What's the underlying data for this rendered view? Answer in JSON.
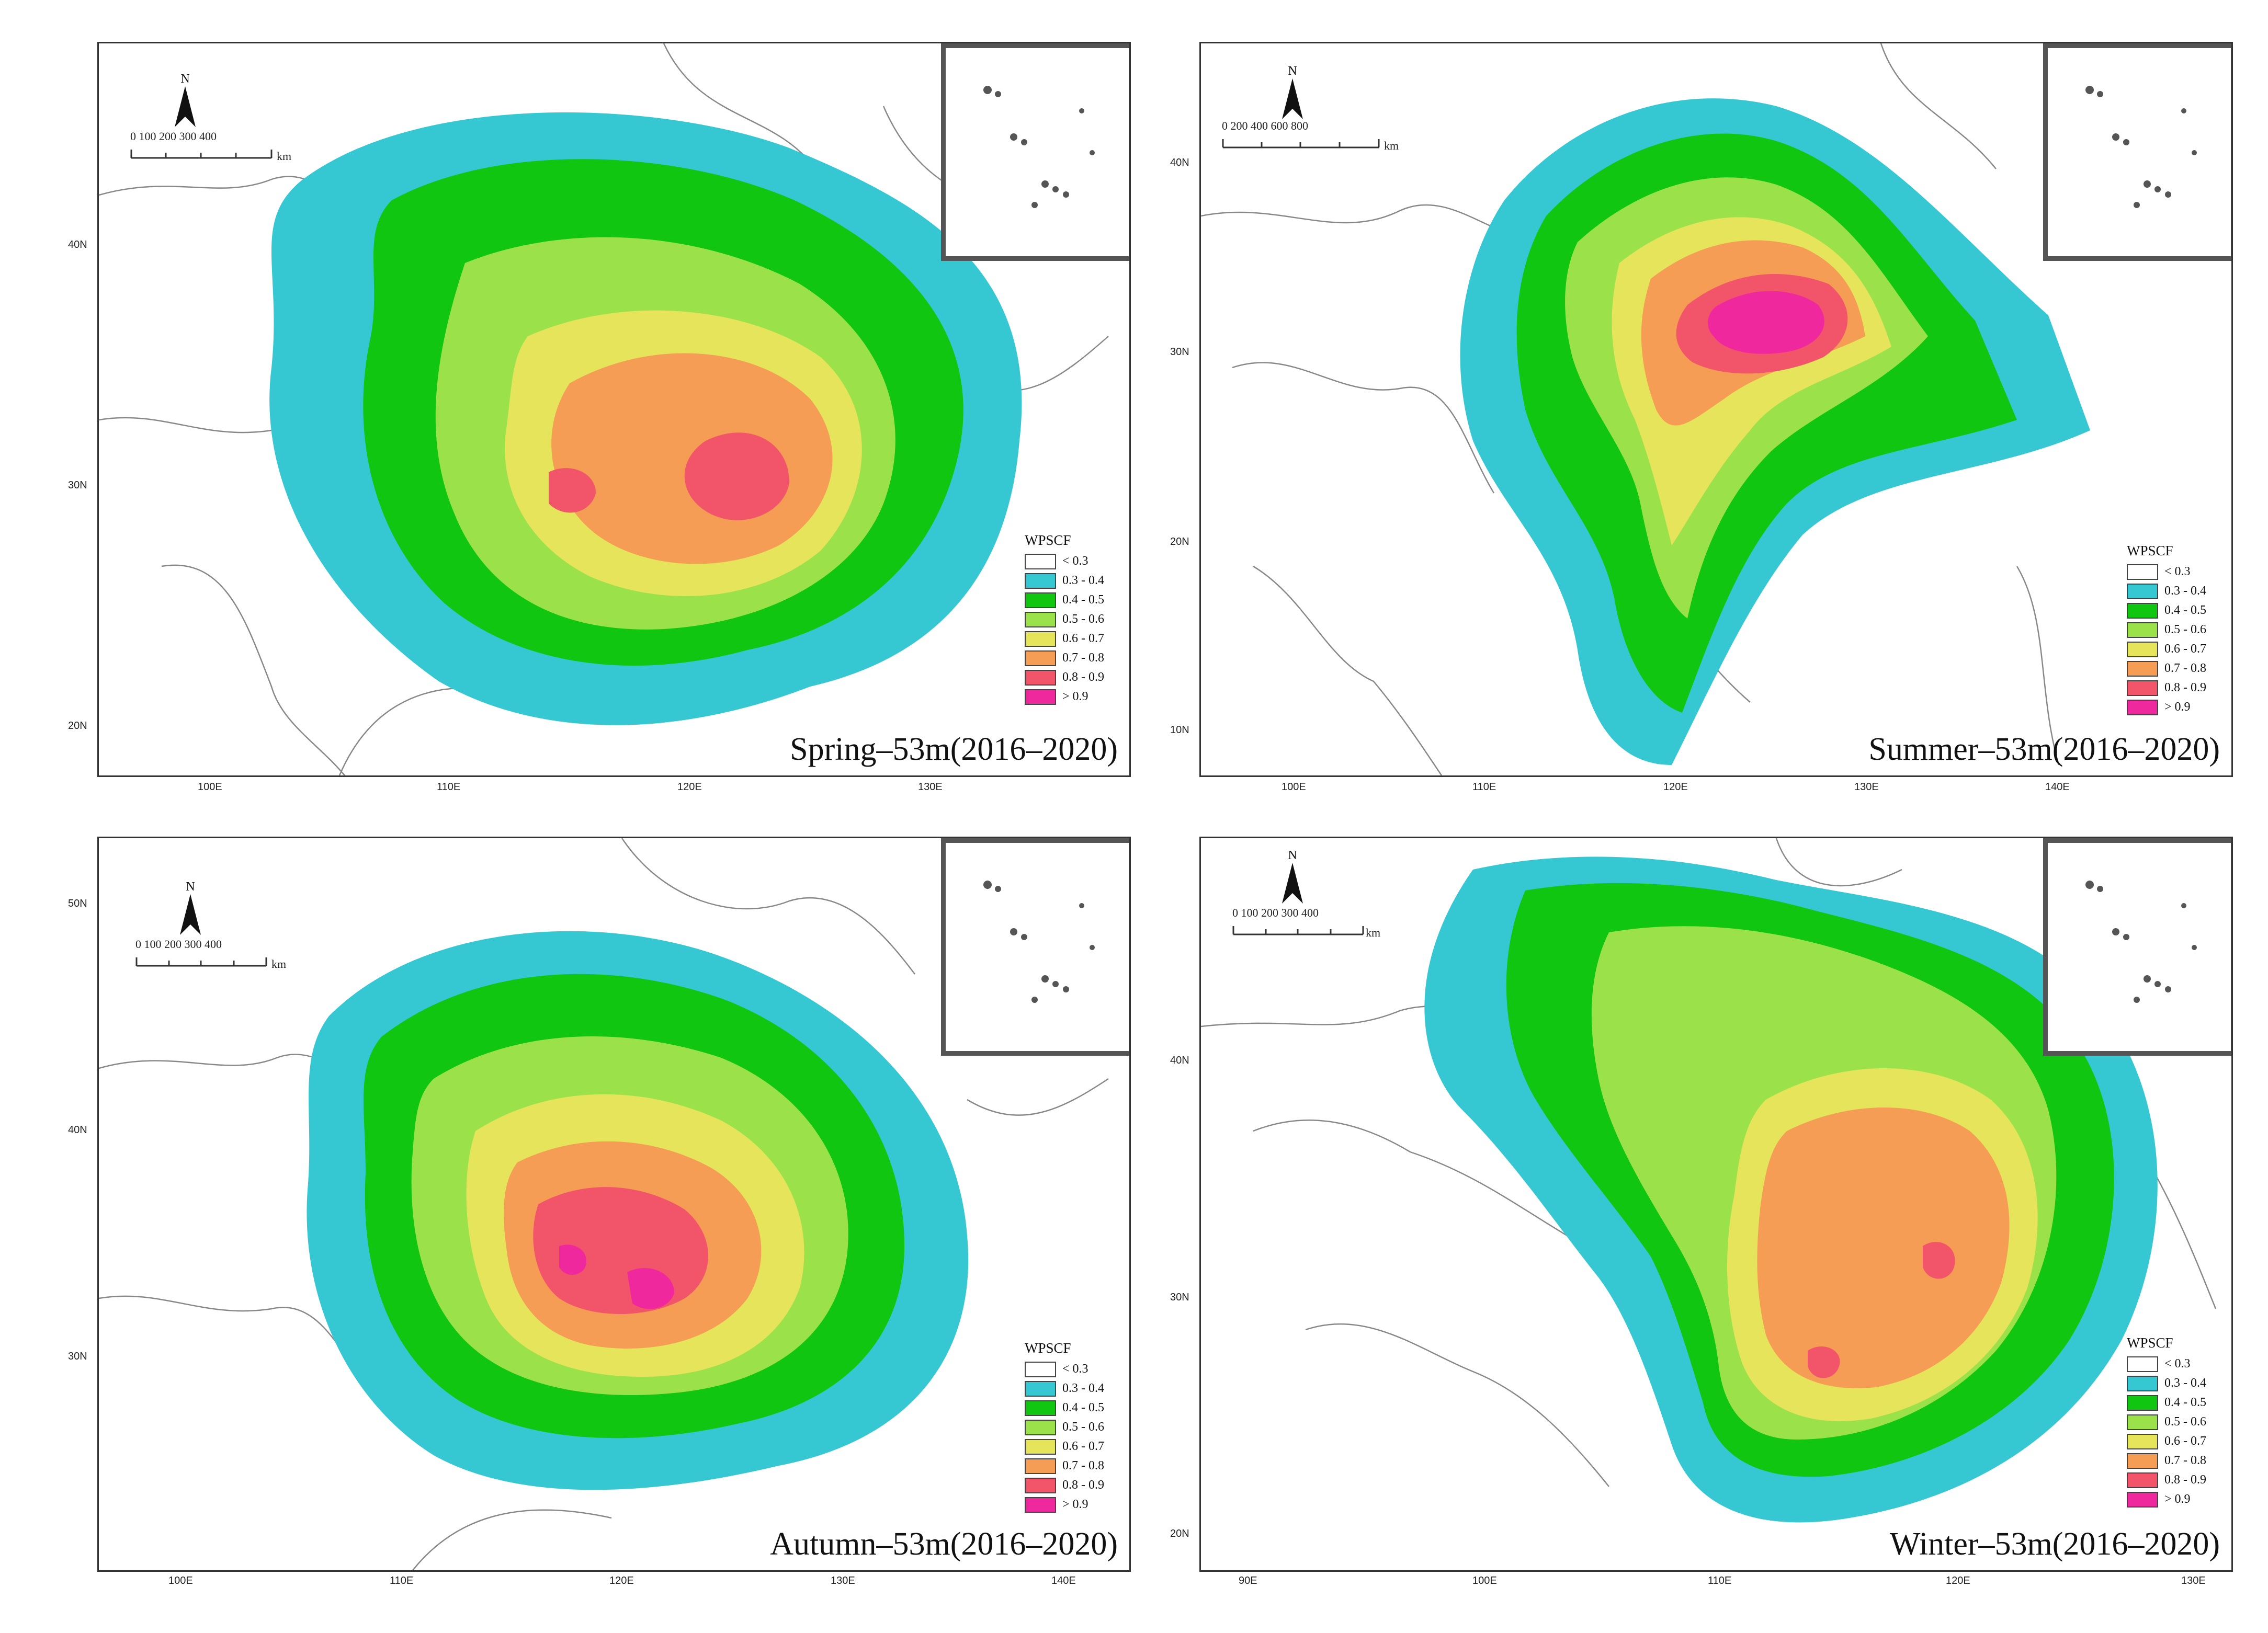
{
  "legend": {
    "title": "WPSCF",
    "classes": [
      {
        "label": "< 0.3",
        "color": "#ffffff"
      },
      {
        "label": "0.3 - 0.4",
        "color": "#35c8d2"
      },
      {
        "label": "0.4 - 0.5",
        "color": "#10c610"
      },
      {
        "label": "0.5 - 0.6",
        "color": "#9be24a"
      },
      {
        "label": "0.6 - 0.7",
        "color": "#e6e45a"
      },
      {
        "label": "0.7 - 0.8",
        "color": "#f59d55"
      },
      {
        "label": "0.8 - 0.9",
        "color": "#f2556a"
      },
      {
        "label": "> 0.9",
        "color": "#f0289e"
      }
    ]
  },
  "panels": [
    {
      "id": "spring",
      "title": "Spring–53m(2016–2020)",
      "north_label": "N",
      "scale": {
        "ticks": "0   100  200  300  400",
        "unit": "km"
      },
      "x_ticks": [
        "100E",
        "110E",
        "120E",
        "130E"
      ],
      "y_ticks": [
        "40N",
        "30N",
        "20N"
      ]
    },
    {
      "id": "summer",
      "title": "Summer–53m(2016–2020)",
      "north_label": "N",
      "scale": {
        "ticks": "0    200   400   600   800",
        "unit": "km"
      },
      "x_ticks": [
        "100E",
        "110E",
        "120E",
        "130E",
        "140E"
      ],
      "y_ticks": [
        "40N",
        "30N",
        "20N",
        "10N"
      ]
    },
    {
      "id": "autumn",
      "title": "Autumn–53m(2016–2020)",
      "north_label": "N",
      "scale": {
        "ticks": "0   100  200  300  400",
        "unit": "km"
      },
      "x_ticks": [
        "100E",
        "110E",
        "120E",
        "130E",
        "140E"
      ],
      "y_ticks": [
        "50N",
        "40N",
        "30N"
      ]
    },
    {
      "id": "winter",
      "title": "Winter–53m(2016–2020)",
      "north_label": "N",
      "scale": {
        "ticks": "0   100  200  300  400",
        "unit": "km"
      },
      "x_ticks": [
        "90E",
        "100E",
        "110E",
        "120E",
        "130E"
      ],
      "y_ticks": [
        "40N",
        "30N",
        "20N"
      ]
    }
  ]
}
